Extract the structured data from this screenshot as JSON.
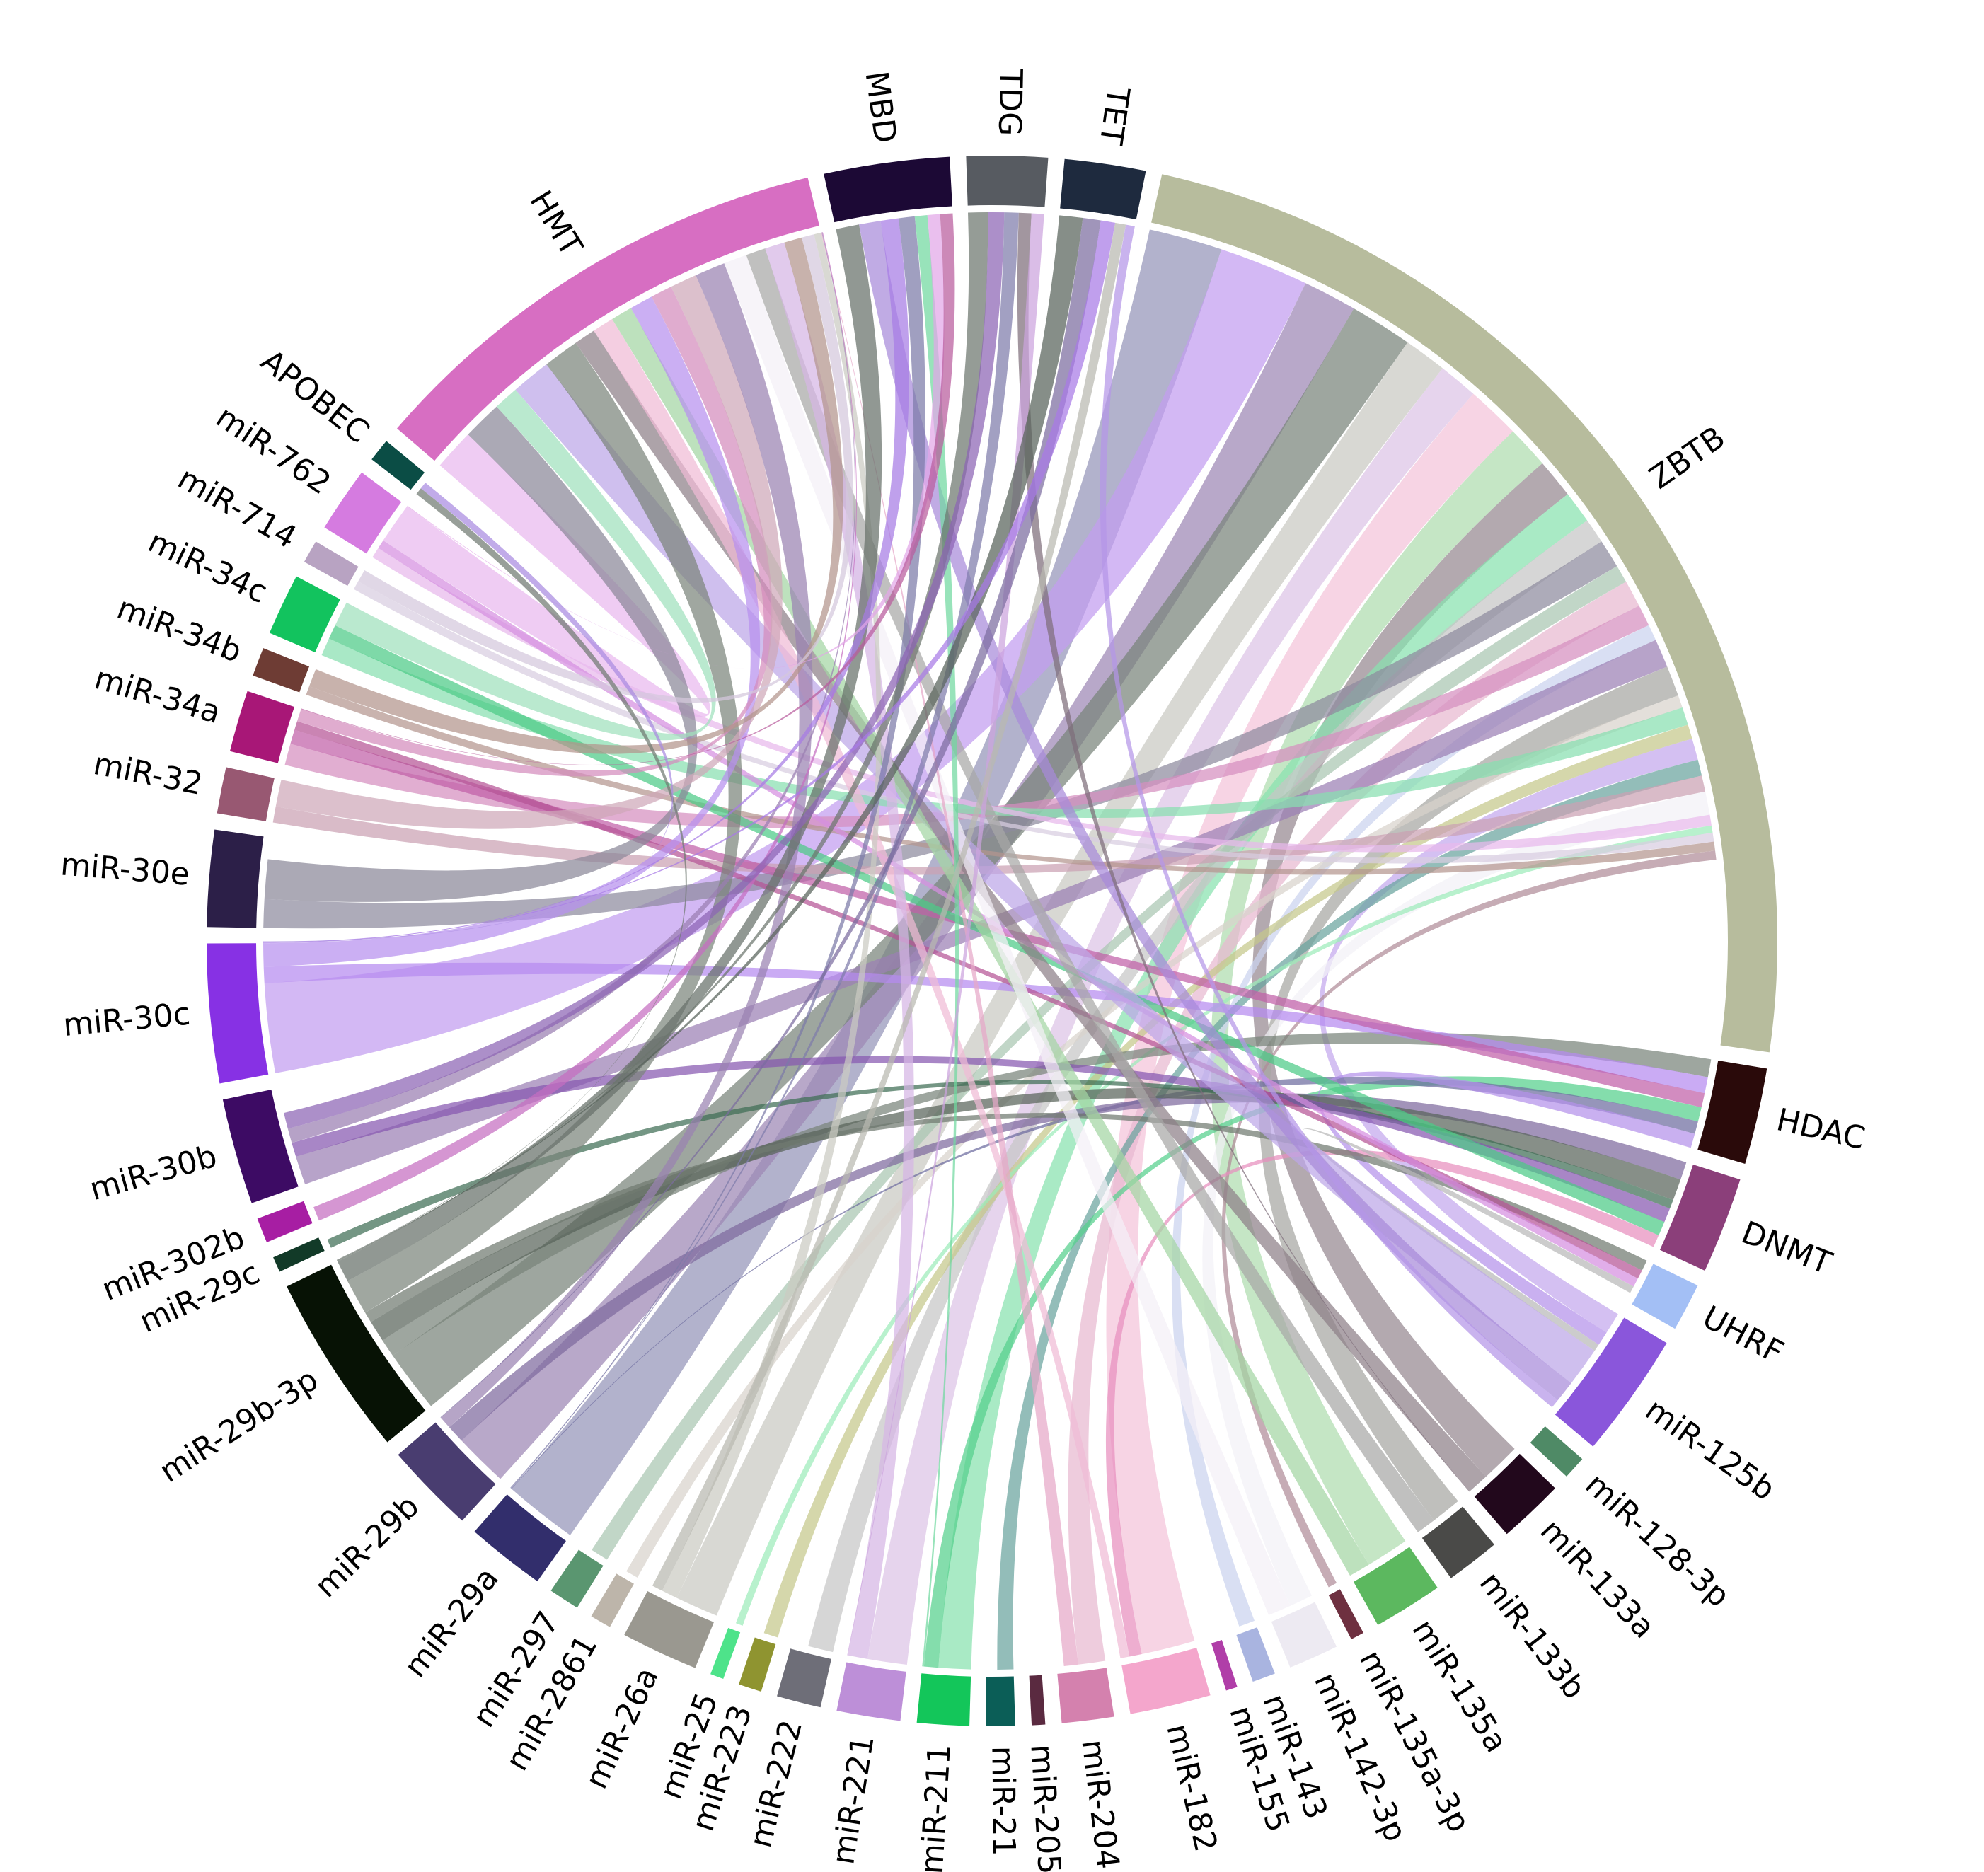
{
  "chart_data": {
    "type": "chord",
    "title": "",
    "legend": "none",
    "sectors": [
      {
        "label": "ZBTB",
        "color": "#B7BC9D",
        "size": 60
      },
      {
        "label": "HDAC",
        "color": "#2A0A0A",
        "size": 5
      },
      {
        "label": "DNMT",
        "color": "#8B3F7A",
        "size": 5
      },
      {
        "label": "UHRF",
        "color": "#A3BFF5",
        "size": 2.5
      },
      {
        "label": "miR-125b",
        "color": "#8A56DB",
        "size": 6.5
      },
      {
        "label": "miR-128-3p",
        "color": "#4F8A66",
        "size": 1.2
      },
      {
        "label": "miR-133a",
        "color": "#22081C",
        "size": 3.4
      },
      {
        "label": "miR-133b",
        "color": "#4A4A48",
        "size": 2.8
      },
      {
        "label": "miR-135a",
        "color": "#5CB85F",
        "size": 3.6
      },
      {
        "label": "miR-135a-3p",
        "color": "#6E3040",
        "size": 0.7
      },
      {
        "label": "miR-142-3p",
        "color": "#EDEAF2",
        "size": 2.6
      },
      {
        "label": "miR-143",
        "color": "#A9B4E0",
        "size": 1.2
      },
      {
        "label": "miR-155",
        "color": "#B03EA8",
        "size": 0.6
      },
      {
        "label": "miR-182",
        "color": "#F4A6CC",
        "size": 4.2
      },
      {
        "label": "miR-204",
        "color": "#D481AE",
        "size": 2.7
      },
      {
        "label": "miR-205",
        "color": "#5A2A40",
        "size": 0.7
      },
      {
        "label": "miR-21",
        "color": "#0B5E57",
        "size": 1.5
      },
      {
        "label": "miR-211",
        "color": "#13C65A",
        "size": 2.7
      },
      {
        "label": "miR-221",
        "color": "#BD8FD8",
        "size": 3.3
      },
      {
        "label": "miR-222",
        "color": "#6E6E78",
        "size": 2.3
      },
      {
        "label": "miR-223",
        "color": "#8F9430",
        "size": 1.2
      },
      {
        "label": "miR-25",
        "color": "#4EE38A",
        "size": 0.7
      },
      {
        "label": "miR-26a",
        "color": "#9A9890",
        "size": 4.0
      },
      {
        "label": "miR-2861",
        "color": "#BDB5AA",
        "size": 1.1
      },
      {
        "label": "miR-297",
        "color": "#5A9670",
        "size": 1.6
      },
      {
        "label": "miR-29a",
        "color": "#322E6C",
        "size": 4.1
      },
      {
        "label": "miR-29b",
        "color": "#493D70",
        "size": 4.7
      },
      {
        "label": "miR-29b-3p",
        "color": "#071205",
        "size": 9.5
      },
      {
        "label": "miR-29c",
        "color": "#123A28",
        "size": 0.8
      },
      {
        "label": "miR-302b",
        "color": "#A71EA3",
        "size": 1.3
      },
      {
        "label": "miR-30b",
        "color": "#3D0B64",
        "size": 5.5
      },
      {
        "label": "miR-30c",
        "color": "#8731E4",
        "size": 7.2
      },
      {
        "label": "miR-30e",
        "color": "#2C1F48",
        "size": 5.0
      },
      {
        "label": "miR-32",
        "color": "#985872",
        "size": 2.4
      },
      {
        "label": "miR-34a",
        "color": "#A81777",
        "size": 3.2
      },
      {
        "label": "miR-34b",
        "color": "#6E3C34",
        "size": 1.5
      },
      {
        "label": "miR-34c",
        "color": "#12C35E",
        "size": 3.2
      },
      {
        "label": "miR-714",
        "color": "#B8A3C2",
        "size": 1.2
      },
      {
        "label": "miR-762",
        "color": "#D57BE0",
        "size": 3.4
      },
      {
        "label": "APOBEC",
        "color": "#0B4D45",
        "size": 1.2
      },
      {
        "label": "HMT",
        "color": "#D76EC2",
        "size": 25
      },
      {
        "label": "MBD",
        "color": "#1C0935",
        "size": 6.5
      },
      {
        "label": "TDG",
        "color": "#575B61",
        "size": 4.2
      },
      {
        "label": "TET",
        "color": "#1E2A3E",
        "size": 4.2
      }
    ],
    "links": [
      {
        "from": "ZBTB",
        "to": "miR-29a",
        "value": 4.1,
        "color": "#9494B9"
      },
      {
        "from": "ZBTB",
        "to": "miR-30c",
        "value": 5.0,
        "color": "#C29DF0"
      },
      {
        "from": "ZBTB",
        "to": "miR-29b",
        "value": 3.0,
        "color": "#9C86B4"
      },
      {
        "from": "ZBTB",
        "to": "miR-29b-3p",
        "value": 3.5,
        "color": "#79837A"
      },
      {
        "from": "ZBTB",
        "to": "miR-26a",
        "value": 2.4,
        "color": "#C9C9C2"
      },
      {
        "from": "ZBTB",
        "to": "miR-221",
        "value": 2.2,
        "color": "#DCC3E6"
      },
      {
        "from": "ZBTB",
        "to": "miR-182",
        "value": 3.0,
        "color": "#F4C3DA"
      },
      {
        "from": "ZBTB",
        "to": "miR-135a",
        "value": 2.4,
        "color": "#AFDCAE"
      },
      {
        "from": "ZBTB",
        "to": "miR-133a",
        "value": 2.2,
        "color": "#968890"
      },
      {
        "from": "ZBTB",
        "to": "miR-211",
        "value": 1.8,
        "color": "#88E2AE"
      },
      {
        "from": "ZBTB",
        "to": "miR-222",
        "value": 1.4,
        "color": "#C6C6C6"
      },
      {
        "from": "ZBTB",
        "to": "miR-30e",
        "value": 1.6,
        "color": "#8D8A9E"
      },
      {
        "from": "ZBTB",
        "to": "miR-297",
        "value": 1.0,
        "color": "#A9C6B2"
      },
      {
        "from": "ZBTB",
        "to": "miR-204",
        "value": 1.5,
        "color": "#E8B9D0"
      },
      {
        "from": "ZBTB",
        "to": "miR-34a",
        "value": 1.2,
        "color": "#D58FBF"
      },
      {
        "from": "ZBTB",
        "to": "miR-143",
        "value": 0.9,
        "color": "#CBD3EE"
      },
      {
        "from": "ZBTB",
        "to": "miR-30b",
        "value": 1.6,
        "color": "#9B7FB4"
      },
      {
        "from": "ZBTB",
        "to": "miR-133b",
        "value": 1.7,
        "color": "#A6A6A2"
      },
      {
        "from": "ZBTB",
        "to": "miR-2861",
        "value": 0.7,
        "color": "#D8D2CC"
      },
      {
        "from": "ZBTB",
        "to": "miR-34c",
        "value": 1.0,
        "color": "#88DFB0"
      },
      {
        "from": "ZBTB",
        "to": "miR-223",
        "value": 0.8,
        "color": "#C5C88A"
      },
      {
        "from": "ZBTB",
        "to": "miR-125b",
        "value": 1.2,
        "color": "#C3A7ED"
      },
      {
        "from": "ZBTB",
        "to": "miR-21",
        "value": 0.9,
        "color": "#6AA49E"
      },
      {
        "from": "ZBTB",
        "to": "miR-32",
        "value": 0.9,
        "color": "#CBA1B3"
      },
      {
        "from": "ZBTB",
        "to": "miR-142-3p",
        "value": 1.3,
        "color": "#F3F1F6"
      },
      {
        "from": "ZBTB",
        "to": "miR-762",
        "value": 0.6,
        "color": "#E8B8EC"
      },
      {
        "from": "ZBTB",
        "to": "miR-25",
        "value": 0.4,
        "color": "#9CEBBA"
      },
      {
        "from": "ZBTB",
        "to": "miR-714",
        "value": 0.5,
        "color": "#D8CDE0"
      },
      {
        "from": "ZBTB",
        "to": "miR-34b",
        "value": 0.5,
        "color": "#B4968F"
      },
      {
        "from": "ZBTB",
        "to": "miR-135a-3p",
        "value": 0.5,
        "color": "#B08C98"
      },
      {
        "from": "HDAC",
        "to": "miR-29b-3p",
        "value": 1.0,
        "color": "#79837A"
      },
      {
        "from": "HDAC",
        "to": "miR-30c",
        "value": 0.9,
        "color": "#B68AF0"
      },
      {
        "from": "HDAC",
        "to": "miR-34a",
        "value": 0.8,
        "color": "#C060A8"
      },
      {
        "from": "HDAC",
        "to": "miR-211",
        "value": 0.8,
        "color": "#55D08C"
      },
      {
        "from": "HDAC",
        "to": "miR-29a",
        "value": 0.7,
        "color": "#6E6CA0"
      },
      {
        "from": "HDAC",
        "to": "miR-125b",
        "value": 0.8,
        "color": "#B492EA"
      },
      {
        "from": "DNMT",
        "to": "miR-29b",
        "value": 1.0,
        "color": "#7E6A9E"
      },
      {
        "from": "DNMT",
        "to": "miR-29b-3p",
        "value": 1.2,
        "color": "#59645A"
      },
      {
        "from": "DNMT",
        "to": "miR-29c",
        "value": 0.5,
        "color": "#3E6E55"
      },
      {
        "from": "DNMT",
        "to": "miR-30b",
        "value": 0.8,
        "color": "#8658B0"
      },
      {
        "from": "DNMT",
        "to": "miR-34c",
        "value": 0.8,
        "color": "#4CCB86"
      },
      {
        "from": "DNMT",
        "to": "miR-182",
        "value": 0.7,
        "color": "#E88FBE"
      },
      {
        "from": "UHRF",
        "to": "miR-29b-3p",
        "value": 0.6,
        "color": "#707A70"
      },
      {
        "from": "UHRF",
        "to": "miR-34a",
        "value": 0.5,
        "color": "#B65496"
      },
      {
        "from": "UHRF",
        "to": "miR-762",
        "value": 0.5,
        "color": "#D58FE0"
      },
      {
        "from": "UHRF",
        "to": "miR-125b",
        "value": 0.4,
        "color": "#B9B9B9"
      },
      {
        "from": "HMT",
        "to": "miR-762",
        "value": 2.3,
        "color": "#E9B8EF"
      },
      {
        "from": "HMT",
        "to": "miR-30e",
        "value": 2.2,
        "color": "#8A8898"
      },
      {
        "from": "HMT",
        "to": "miR-34c",
        "value": 1.4,
        "color": "#9FE0BC"
      },
      {
        "from": "HMT",
        "to": "miR-125b",
        "value": 2.2,
        "color": "#BDA6E8"
      },
      {
        "from": "HMT",
        "to": "miR-29b-3p",
        "value": 2.0,
        "color": "#7C857C"
      },
      {
        "from": "HMT",
        "to": "miR-133a",
        "value": 1.2,
        "color": "#8E8088"
      },
      {
        "from": "HMT",
        "to": "miR-182",
        "value": 1.2,
        "color": "#F0BBD6"
      },
      {
        "from": "HMT",
        "to": "miR-135a",
        "value": 1.2,
        "color": "#A4D6A4"
      },
      {
        "from": "HMT",
        "to": "miR-30c",
        "value": 1.3,
        "color": "#B790EE"
      },
      {
        "from": "HMT",
        "to": "miR-34a",
        "value": 1.2,
        "color": "#D48CBD"
      },
      {
        "from": "HMT",
        "to": "miR-32",
        "value": 1.5,
        "color": "#CEA8B8"
      },
      {
        "from": "HMT",
        "to": "miR-29b",
        "value": 1.7,
        "color": "#9A82B2"
      },
      {
        "from": "HMT",
        "to": "miR-142-3p",
        "value": 1.3,
        "color": "#F4F0F6"
      },
      {
        "from": "HMT",
        "to": "miR-133b",
        "value": 1.1,
        "color": "#A8A8A6"
      },
      {
        "from": "HMT",
        "to": "miR-221",
        "value": 1.1,
        "color": "#D6B6E5"
      },
      {
        "from": "HMT",
        "to": "miR-34b",
        "value": 1.0,
        "color": "#B3948C"
      },
      {
        "from": "HMT",
        "to": "miR-714",
        "value": 0.7,
        "color": "#D4C8DC"
      },
      {
        "from": "HMT",
        "to": "miR-26a",
        "value": 0.9,
        "color": "#CACAC2"
      },
      {
        "from": "HMT",
        "to": "miR-204",
        "value": 0.8,
        "color": "#E6A8C8"
      },
      {
        "from": "HMT",
        "to": "miR-30b",
        "value": 0.8,
        "color": "#9A7EB2"
      },
      {
        "from": "HMT",
        "to": "miR-302b",
        "value": 0.8,
        "color": "#C56EC0"
      },
      {
        "from": "MBD",
        "to": "miR-29b-3p",
        "value": 1.3,
        "color": "#66706A"
      },
      {
        "from": "MBD",
        "to": "miR-125b",
        "value": 1.2,
        "color": "#A88ADA"
      },
      {
        "from": "MBD",
        "to": "miR-30c",
        "value": 1.0,
        "color": "#A67BE5"
      },
      {
        "from": "MBD",
        "to": "miR-29a",
        "value": 0.9,
        "color": "#7C7AA8"
      },
      {
        "from": "MBD",
        "to": "miR-211",
        "value": 0.7,
        "color": "#70D8A0"
      },
      {
        "from": "MBD",
        "to": "miR-762",
        "value": 0.7,
        "color": "#E2A6E8"
      },
      {
        "from": "MBD",
        "to": "miR-34a",
        "value": 0.7,
        "color": "#B85C9C"
      },
      {
        "from": "TDG",
        "to": "miR-29b-3p",
        "value": 1.1,
        "color": "#6C766E"
      },
      {
        "from": "TDG",
        "to": "miR-30b",
        "value": 0.9,
        "color": "#8C64B4"
      },
      {
        "from": "TDG",
        "to": "miR-29a",
        "value": 0.8,
        "color": "#7E7CAA"
      },
      {
        "from": "TDG",
        "to": "miR-133a",
        "value": 0.7,
        "color": "#7E6E7A"
      },
      {
        "from": "TDG",
        "to": "miR-221",
        "value": 0.7,
        "color": "#CCA4DE"
      },
      {
        "from": "TET",
        "to": "miR-29b-3p",
        "value": 1.3,
        "color": "#58625A"
      },
      {
        "from": "TET",
        "to": "miR-29b",
        "value": 1.0,
        "color": "#7C6CA0"
      },
      {
        "from": "TET",
        "to": "miR-30c",
        "value": 0.8,
        "color": "#A87AE6"
      },
      {
        "from": "TET",
        "to": "miR-26a",
        "value": 0.6,
        "color": "#B8B8B0"
      },
      {
        "from": "TET",
        "to": "miR-125b",
        "value": 0.5,
        "color": "#B496E8"
      },
      {
        "from": "APOBEC",
        "to": "miR-29b-3p",
        "value": 0.4,
        "color": "#707A72"
      },
      {
        "from": "APOBEC",
        "to": "miR-30c",
        "value": 0.4,
        "color": "#A98AE0"
      }
    ]
  }
}
